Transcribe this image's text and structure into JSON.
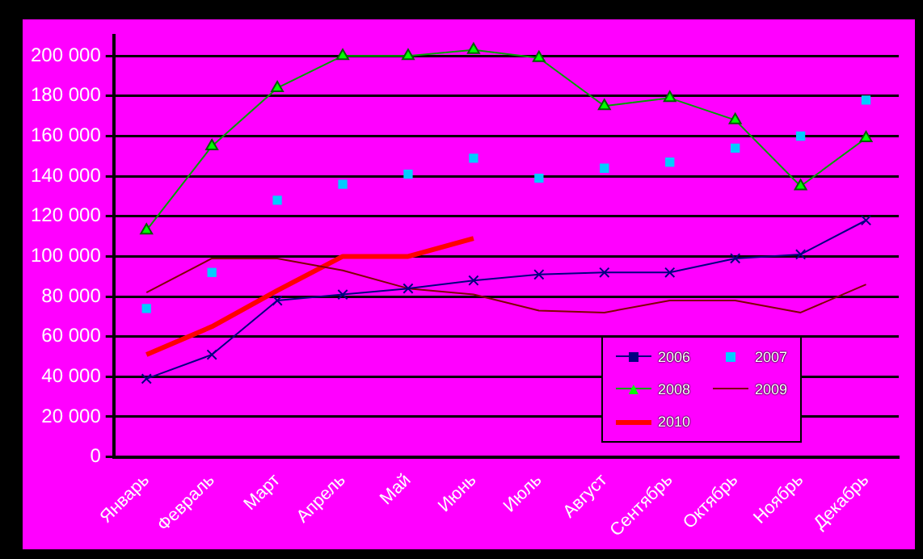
{
  "chart_data": {
    "type": "line",
    "categories": [
      "Январь",
      "Февраль",
      "Март",
      "Апрель",
      "Май",
      "Июнь",
      "Июль",
      "Август",
      "Сентябрь",
      "Октябрь",
      "Ноябрь",
      "Декабрь"
    ],
    "series": [
      {
        "name": "2006",
        "color": "#000080",
        "marker": "cross",
        "values": [
          39000,
          51000,
          78000,
          81000,
          84000,
          88000,
          91000,
          92000,
          92000,
          99000,
          101000,
          118000
        ]
      },
      {
        "name": "2007",
        "type": "scatter",
        "color": "#00ccff",
        "marker": "square",
        "values": [
          74000,
          92000,
          128000,
          136000,
          141000,
          149000,
          139000,
          144000,
          147000,
          154000,
          160000,
          178000
        ]
      },
      {
        "name": "2008",
        "color": "#00a000",
        "marker": "triangle",
        "values": [
          113000,
          155000,
          184000,
          200000,
          200000,
          203000,
          199000,
          175000,
          179000,
          168000,
          135000,
          159000
        ]
      },
      {
        "name": "2009",
        "color": "#800000",
        "marker": "none",
        "values": [
          82000,
          99000,
          99000,
          93000,
          84000,
          81000,
          73000,
          72000,
          78000,
          78000,
          72000,
          86000
        ]
      },
      {
        "name": "2010",
        "color": "#ff0000",
        "marker": "none",
        "values": [
          51000,
          65000,
          83000,
          100000,
          100000,
          109000,
          null,
          null,
          null,
          null,
          null,
          null
        ]
      }
    ],
    "ylim": [
      0,
      210000
    ],
    "yticks": [
      0,
      {
        "value": 20000,
        "label": "20 000"
      },
      {
        "value": 40000,
        "label": "40 000"
      },
      {
        "value": 60000,
        "label": "60 000"
      },
      {
        "value": 80000,
        "label": "80 000"
      },
      {
        "value": 100000,
        "label": "100 000"
      },
      {
        "value": 120000,
        "label": "120 000"
      },
      {
        "value": 140000,
        "label": "140 000"
      },
      {
        "value": 160000,
        "label": "160 000"
      },
      {
        "value": 180000,
        "label": "180 000"
      },
      {
        "value": 200000,
        "label": "200 000"
      }
    ],
    "grid": "y",
    "legend": "bottom right"
  }
}
